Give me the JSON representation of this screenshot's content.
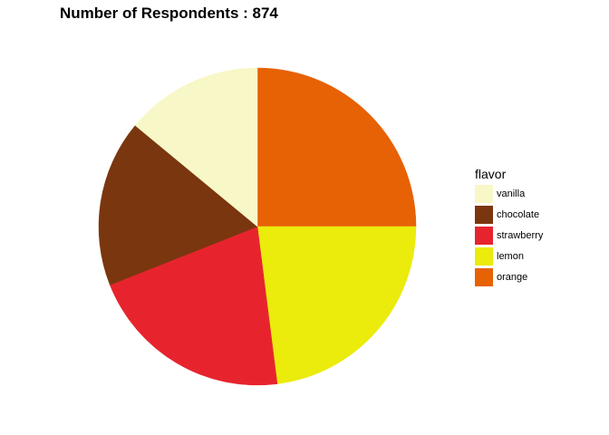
{
  "chart_data": {
    "type": "pie",
    "title": "Number of Respondents : 874",
    "legend_title": "flavor",
    "legend_position": "right",
    "slices": [
      {
        "label": "vanilla",
        "value": 0.14,
        "color": "#F8F7C7"
      },
      {
        "label": "chocolate",
        "value": 0.17,
        "color": "#7A360E"
      },
      {
        "label": "strawberry",
        "value": 0.21,
        "color": "#E7242E"
      },
      {
        "label": "lemon",
        "value": 0.23,
        "color": "#EBEB0C"
      },
      {
        "label": "orange",
        "value": 0.25,
        "color": "#E76105"
      }
    ]
  }
}
